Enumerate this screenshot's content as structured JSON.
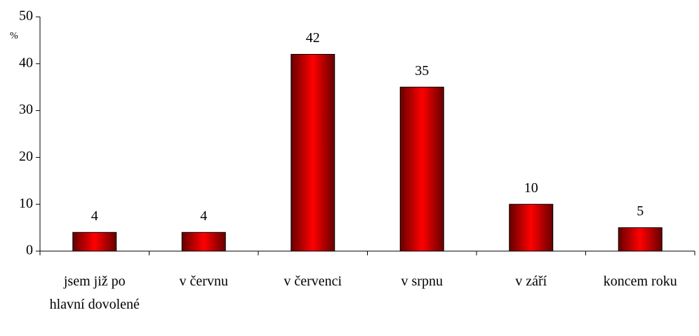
{
  "chart_data": {
    "type": "bar",
    "y_label": "%",
    "categories": [
      "jsem již po hlavní dovolené",
      "v červnu",
      "v červenci",
      "v srpnu",
      "v září",
      "koncem roku"
    ],
    "values": [
      4,
      4,
      42,
      35,
      10,
      5
    ],
    "color": "#ff0000",
    "ylim": [
      0,
      50
    ],
    "yticks": [
      0,
      10,
      20,
      30,
      40,
      50
    ],
    "grid": false
  }
}
